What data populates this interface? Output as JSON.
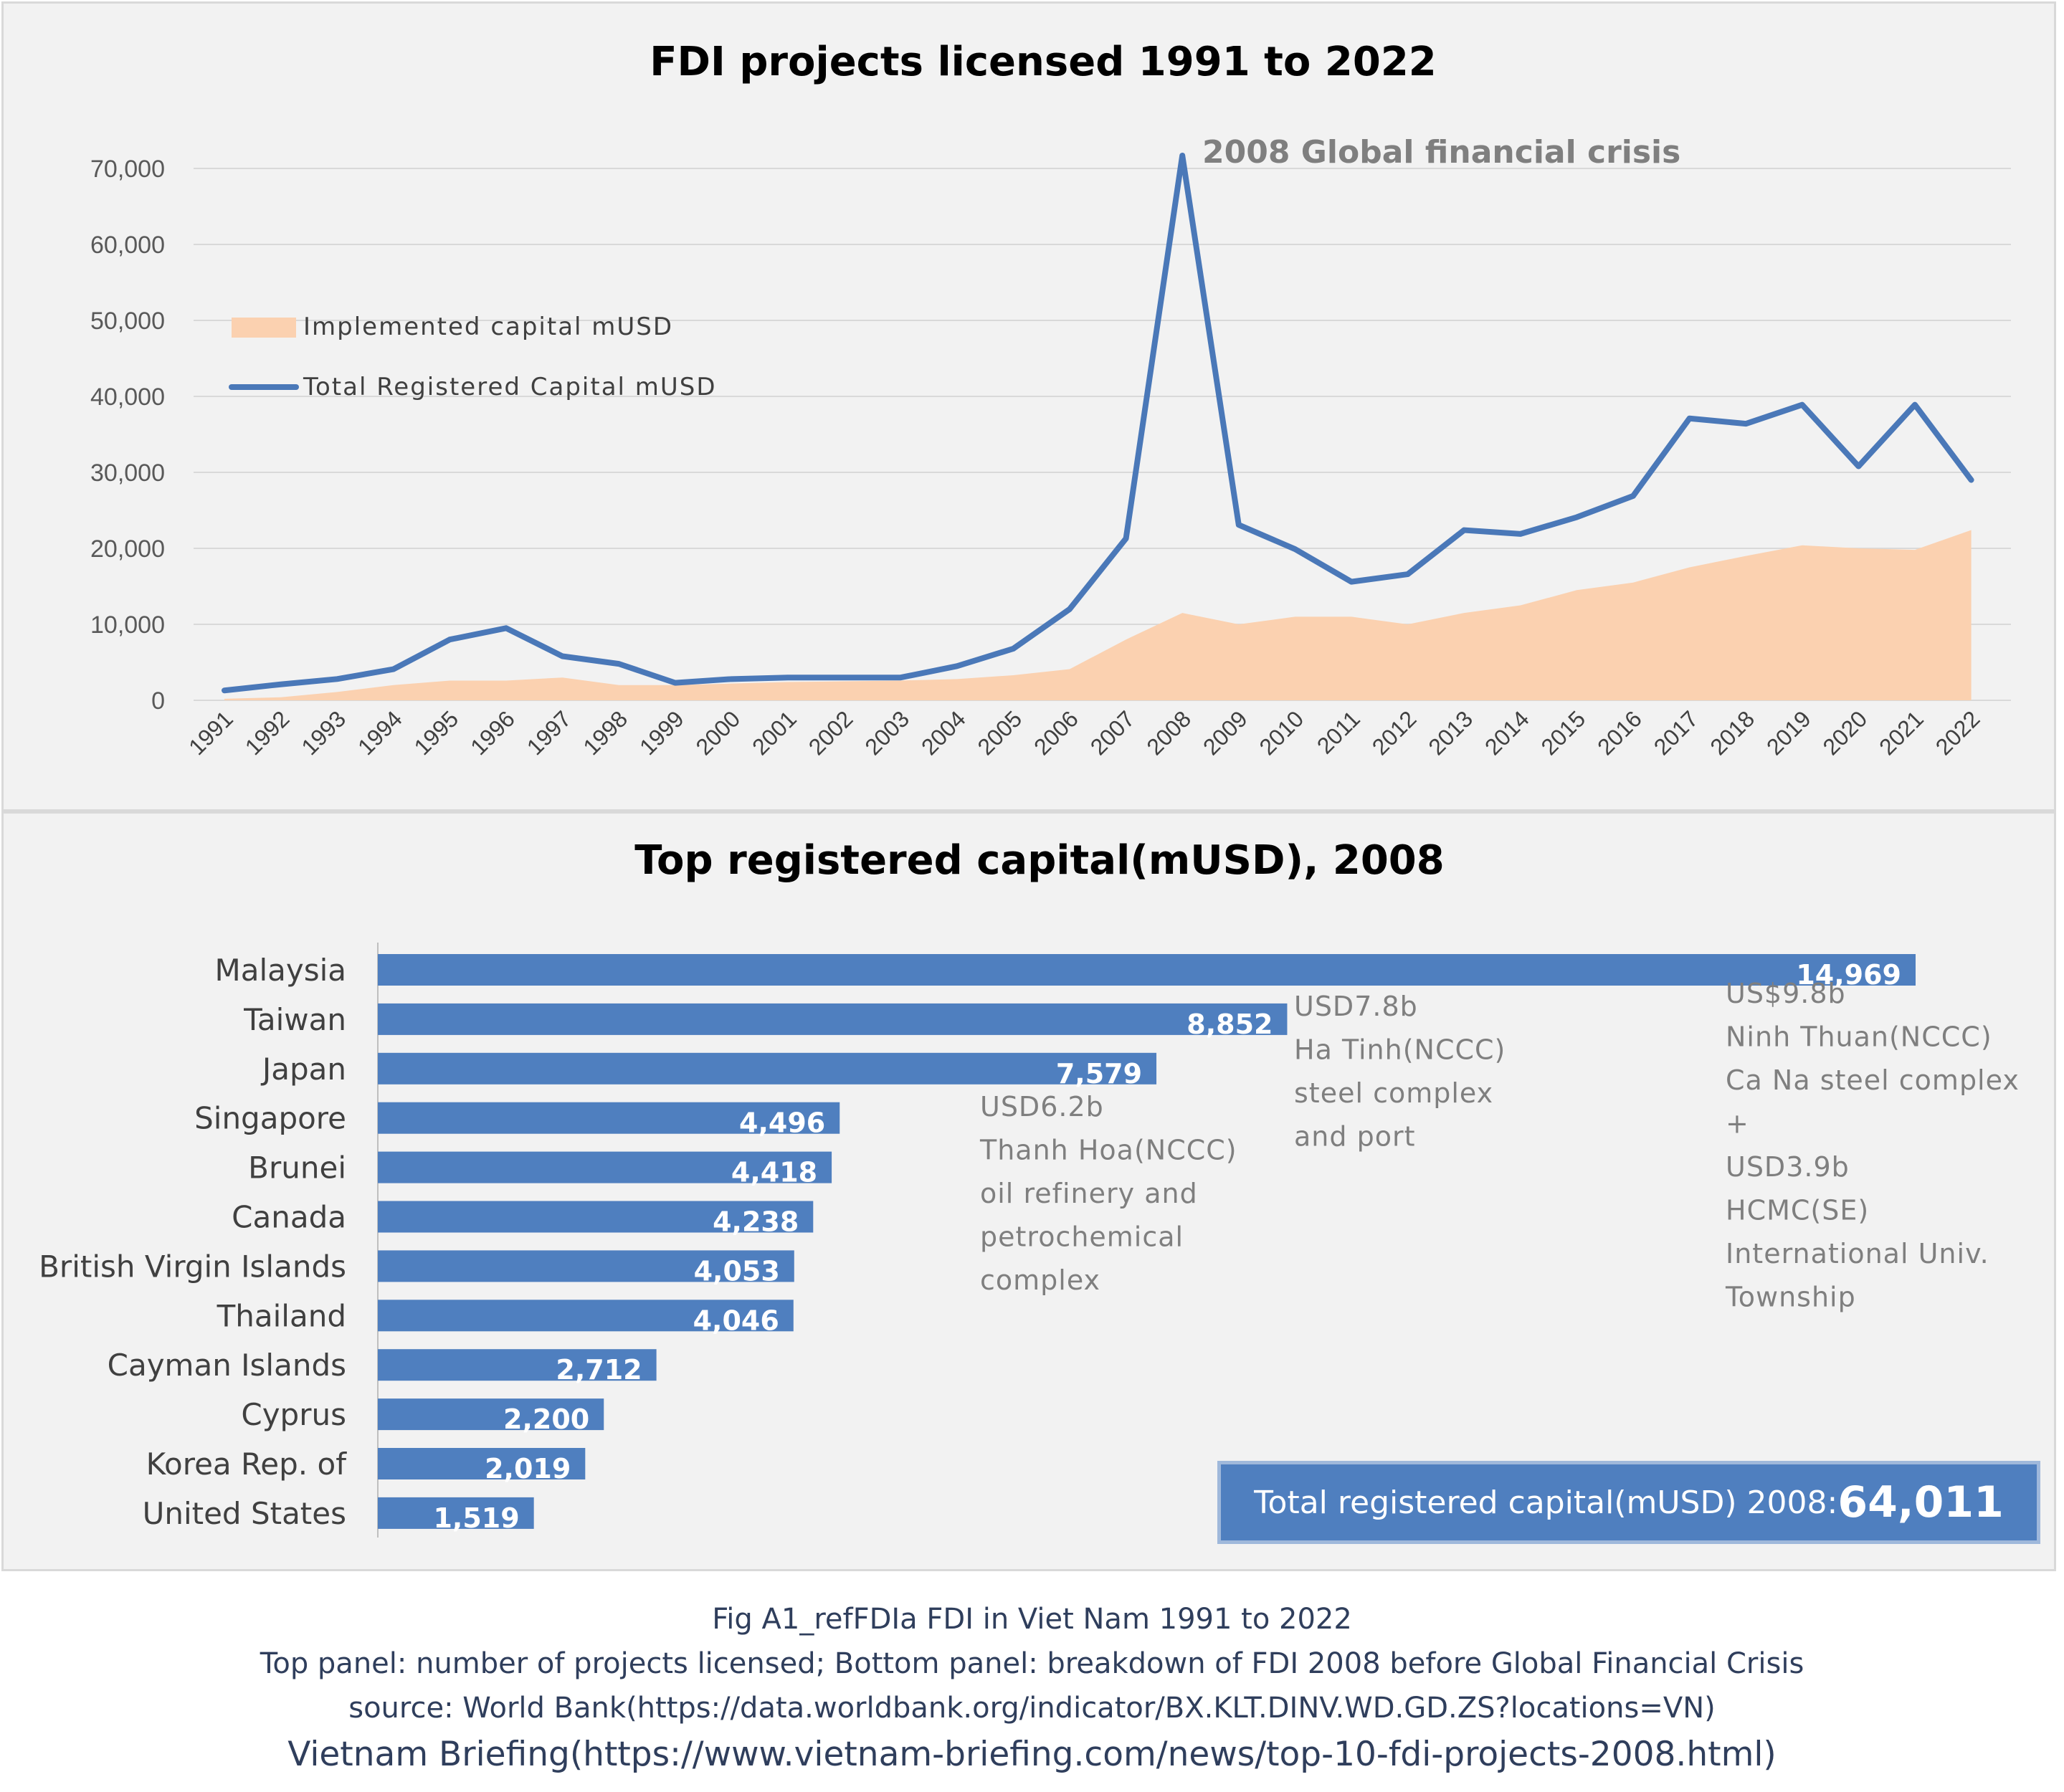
{
  "chart_data": [
    {
      "type": "line",
      "title": "FDI projects licensed 1991 to 2022",
      "x": [
        "1991",
        "1992",
        "1993",
        "1994",
        "1995",
        "1996",
        "1997",
        "1998",
        "1999",
        "2000",
        "2001",
        "2002",
        "2003",
        "2004",
        "2005",
        "2006",
        "2007",
        "2008",
        "2009",
        "2010",
        "2011",
        "2012",
        "2013",
        "2014",
        "2015",
        "2016",
        "2017",
        "2018",
        "2019",
        "2020",
        "2021",
        "2022"
      ],
      "ylim": [
        0,
        70000
      ],
      "yticks": [
        "0",
        "10,000",
        "20,000",
        "30,000",
        "40,000",
        "50,000",
        "60,000",
        "70,000"
      ],
      "grid": true,
      "legend_position": "top-left",
      "annotation": "2008 Global financial crisis",
      "series": [
        {
          "name": "Implemented capital mUSD",
          "type": "area",
          "color": "#fbd1b0",
          "values": [
            200,
            400,
            1100,
            2000,
            2600,
            2600,
            3000,
            2000,
            2000,
            2200,
            2400,
            2500,
            2600,
            2800,
            3300,
            4100,
            8000,
            11500,
            10000,
            11000,
            11000,
            10000,
            11500,
            12500,
            14500,
            15500,
            17500,
            19000,
            20400,
            20000,
            19800,
            22400
          ]
        },
        {
          "name": "Total Registered Capital mUSD",
          "type": "line",
          "color": "#4a78b8",
          "values": [
            1300,
            2100,
            2800,
            4100,
            8000,
            9500,
            5800,
            4800,
            2300,
            2800,
            3000,
            3000,
            3000,
            4500,
            6800,
            12000,
            21300,
            71700,
            23100,
            19900,
            15600,
            16600,
            22400,
            21900,
            24100,
            26900,
            37100,
            36400,
            38900,
            30800,
            38900,
            29000
          ]
        }
      ]
    },
    {
      "type": "bar",
      "orientation": "horizontal",
      "title": "Top registered capital(mUSD), 2008",
      "color": "#4f7fbf",
      "categories": [
        "Malaysia",
        "Taiwan",
        "Japan",
        "Singapore",
        "Brunei",
        "Canada",
        "British Virgin Islands",
        "Thailand",
        "Cayman Islands",
        "Cyprus",
        "Korea Rep. of",
        "United States"
      ],
      "values": [
        14969,
        8852,
        7579,
        4496,
        4418,
        4238,
        4053,
        4046,
        2712,
        2200,
        2019,
        1519
      ],
      "value_labels": [
        "14,969",
        "8,852",
        "7,579",
        "4,496",
        "4,418",
        "4,238",
        "4,053",
        "4,046",
        "2,712",
        "2,200",
        "2,019",
        "1,519"
      ],
      "notes": [
        [
          "USD6.2b",
          "Thanh Hoa(NCCC)",
          "oil refinery and",
          "petrochemical",
          "complex"
        ],
        [
          "USD7.8b",
          "Ha Tinh(NCCC)",
          "steel complex",
          "and port"
        ],
        [
          "US$9.8b",
          "Ninh Thuan(NCCC)",
          "Ca Na steel complex",
          "+",
          "USD3.9b",
          "HCMC(SE)",
          "International Univ.",
          "Township"
        ]
      ],
      "total_label": "Total registered capital(mUSD) 2008:",
      "total_value": "64,011"
    }
  ],
  "caption": [
    "Fig A1_refFDIa FDI in Viet Nam 1991 to 2022",
    "Top panel: number of projects licensed; Bottom panel: breakdown of FDI 2008 before Global Financial Crisis",
    "source: World Bank(https://data.worldbank.org/indicator/BX.KLT.DINV.WD.GD.ZS?locations=VN)",
    "Vietnam Briefing(https://www.vietnam-briefing.com/news/top-10-fdi-projects-2008.html)"
  ]
}
